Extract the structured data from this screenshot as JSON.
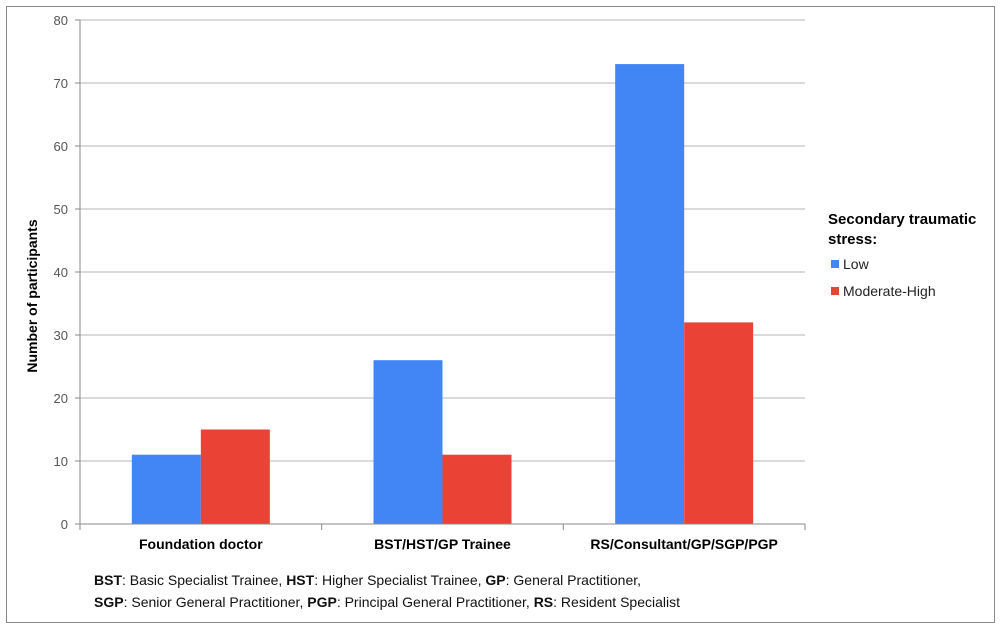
{
  "chart_data": {
    "type": "bar",
    "categories": [
      "Foundation doctor",
      "BST/HST/GP Trainee",
      "RS/Consultant/GP/SGP/PGP"
    ],
    "series": [
      {
        "name": "Low",
        "color": "#4285f4",
        "values": [
          11,
          26,
          73
        ]
      },
      {
        "name": "Moderate-High",
        "color": "#ea4335",
        "values": [
          15,
          11,
          32
        ]
      }
    ],
    "ylabel": "Number of participants",
    "ylim": [
      0,
      80
    ],
    "yticks": [
      0,
      10,
      20,
      30,
      40,
      50,
      60,
      70,
      80
    ],
    "grid": true,
    "legend": {
      "title_lines": [
        "Secondary traumatic",
        "stress:"
      ],
      "position": "right"
    }
  },
  "footnote": {
    "line1": [
      {
        "abbr": "BST",
        "text": ": Basic Specialist Trainee, "
      },
      {
        "abbr": "HST",
        "text": ": Higher Specialist Trainee, "
      },
      {
        "abbr": "GP",
        "text": ": General Practitioner,"
      }
    ],
    "line2": [
      {
        "abbr": "SGP",
        "text": ": Senior General Practitioner,  "
      },
      {
        "abbr": "PGP",
        "text": ": Principal General Practitioner, "
      },
      {
        "abbr": "RS",
        "text": ": Resident Specialist"
      }
    ]
  }
}
